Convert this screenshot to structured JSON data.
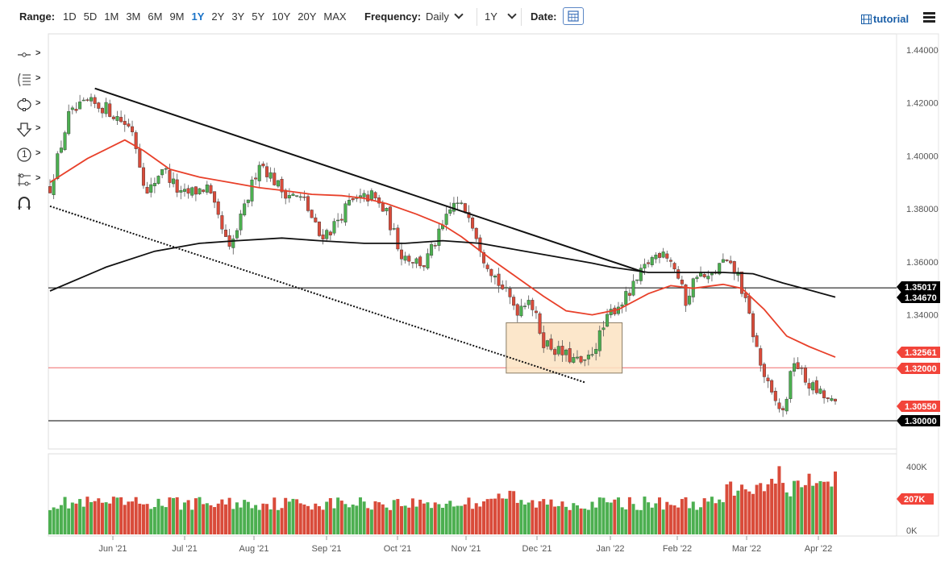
{
  "toolbar": {
    "range_label": "Range:",
    "ranges": [
      "1D",
      "5D",
      "1M",
      "3M",
      "6M",
      "9M",
      "1Y",
      "2Y",
      "3Y",
      "5Y",
      "10Y",
      "20Y",
      "MAX"
    ],
    "active_range": "1Y",
    "frequency_label": "Frequency:",
    "frequency_value": "Daily",
    "period_value": "1Y",
    "date_label": "Date:",
    "tutorial_label": "tutorial"
  },
  "sidebar": {
    "tools": [
      "crosshair-tool",
      "fibonacci-tool",
      "shapes-tool",
      "arrow-tool",
      "label-tool",
      "measure-tool",
      "magnet-tool"
    ],
    "label_text": "1"
  },
  "chart_data": {
    "type": "candlestick",
    "price_axis": {
      "ticks": [
        "1.44000",
        "1.42000",
        "1.40000",
        "1.38000",
        "1.36000",
        "1.34000"
      ],
      "range": [
        1.297,
        1.443
      ]
    },
    "x_axis_labels": [
      "Jun '21",
      "Jul '21",
      "Aug '21",
      "Sep '21",
      "Oct '21",
      "Nov '21",
      "Dec '21",
      "Jan '22",
      "Feb '22",
      "Mar '22",
      "Apr '22"
    ],
    "price_tags": [
      {
        "label": "1.35017",
        "bg": "#000000"
      },
      {
        "label": "1.34670",
        "bg": "#000000"
      },
      {
        "label": "1.32561",
        "bg": "#f2443a"
      },
      {
        "label": "1.32000",
        "bg": "#f2443a"
      },
      {
        "label": "1.30550",
        "bg": "#f2443a"
      },
      {
        "label": "1.30000",
        "bg": "#000000"
      }
    ],
    "horizontal_lines": [
      {
        "price": 1.35017,
        "color": "#000000"
      },
      {
        "price": 1.32,
        "color": "#f06a6a"
      },
      {
        "price": 1.3,
        "color": "#000000"
      }
    ],
    "trendlines": [
      {
        "name": "downtrend-resistance",
        "from": {
          "bar": 12,
          "price": 1.4255
        },
        "to": {
          "bar": 159,
          "price": 1.356
        },
        "style": "solid"
      },
      {
        "name": "channel-support",
        "from": {
          "bar": 0,
          "price": 1.381
        },
        "to": {
          "bar": 143,
          "price": 1.3145
        },
        "style": "dotted"
      }
    ],
    "consolidation_box": {
      "from_bar": 122,
      "to_bar": 153,
      "price_top": 1.337,
      "price_bottom": 1.318
    },
    "moving_averages": [
      {
        "name": "ma-50",
        "color": "#e8402a",
        "points": [
          [
            0,
            1.39
          ],
          [
            10,
            1.399
          ],
          [
            20,
            1.406
          ],
          [
            25,
            1.402
          ],
          [
            32,
            1.395
          ],
          [
            40,
            1.392
          ],
          [
            48,
            1.39
          ],
          [
            56,
            1.388
          ],
          [
            62,
            1.387
          ],
          [
            70,
            1.3855
          ],
          [
            78,
            1.385
          ],
          [
            84,
            1.384
          ],
          [
            90,
            1.382
          ],
          [
            98,
            1.378
          ],
          [
            105,
            1.374
          ],
          [
            110,
            1.3695
          ],
          [
            118,
            1.361
          ],
          [
            125,
            1.354
          ],
          [
            132,
            1.347
          ],
          [
            138,
            1.3415
          ],
          [
            145,
            1.34
          ],
          [
            152,
            1.342
          ],
          [
            160,
            1.348
          ],
          [
            166,
            1.351
          ],
          [
            172,
            1.35
          ],
          [
            180,
            1.3515
          ],
          [
            185,
            1.35
          ],
          [
            191,
            1.342
          ],
          [
            197,
            1.332
          ],
          [
            203,
            1.328
          ],
          [
            210,
            1.324
          ]
        ]
      },
      {
        "name": "ma-200",
        "color": "#111111",
        "points": [
          [
            0,
            1.349
          ],
          [
            15,
            1.358
          ],
          [
            28,
            1.364
          ],
          [
            40,
            1.367
          ],
          [
            50,
            1.368
          ],
          [
            62,
            1.369
          ],
          [
            72,
            1.368
          ],
          [
            84,
            1.367
          ],
          [
            95,
            1.367
          ],
          [
            105,
            1.368
          ],
          [
            115,
            1.367
          ],
          [
            125,
            1.3645
          ],
          [
            135,
            1.362
          ],
          [
            145,
            1.3595
          ],
          [
            150,
            1.358
          ],
          [
            160,
            1.356
          ],
          [
            170,
            1.356
          ],
          [
            180,
            1.356
          ],
          [
            188,
            1.3555
          ],
          [
            196,
            1.352
          ],
          [
            204,
            1.349
          ],
          [
            210,
            1.3467
          ]
        ]
      }
    ],
    "volume_axis": {
      "ticks": [
        "400K",
        "0K"
      ]
    },
    "volume_tag": {
      "label": "207K",
      "bg": "#f2443a"
    },
    "candles": {
      "up_color": "#4caf50",
      "down_color": "#d94b3a",
      "count": 211,
      "anchors": [
        [
          0,
          1.388
        ],
        [
          5,
          1.415
        ],
        [
          10,
          1.42
        ],
        [
          15,
          1.418
        ],
        [
          22,
          1.41
        ],
        [
          26,
          1.385
        ],
        [
          30,
          1.396
        ],
        [
          35,
          1.385
        ],
        [
          42,
          1.388
        ],
        [
          48,
          1.364
        ],
        [
          52,
          1.38
        ],
        [
          56,
          1.398
        ],
        [
          62,
          1.387
        ],
        [
          68,
          1.383
        ],
        [
          72,
          1.37
        ],
        [
          75,
          1.372
        ],
        [
          80,
          1.382
        ],
        [
          86,
          1.385
        ],
        [
          90,
          1.378
        ],
        [
          94,
          1.363
        ],
        [
          100,
          1.359
        ],
        [
          104,
          1.37
        ],
        [
          108,
          1.382
        ],
        [
          112,
          1.379
        ],
        [
          116,
          1.362
        ],
        [
          120,
          1.352
        ],
        [
          125,
          1.342
        ],
        [
          128,
          1.347
        ],
        [
          132,
          1.33
        ],
        [
          136,
          1.326
        ],
        [
          140,
          1.323
        ],
        [
          143,
          1.321
        ],
        [
          146,
          1.329
        ],
        [
          150,
          1.341
        ],
        [
          155,
          1.348
        ],
        [
          160,
          1.36
        ],
        [
          164,
          1.365
        ],
        [
          167,
          1.358
        ],
        [
          170,
          1.345
        ],
        [
          173,
          1.356
        ],
        [
          176,
          1.353
        ],
        [
          180,
          1.36
        ],
        [
          184,
          1.355
        ],
        [
          187,
          1.339
        ],
        [
          190,
          1.321
        ],
        [
          193,
          1.309
        ],
        [
          196,
          1.303
        ],
        [
          199,
          1.323
        ],
        [
          202,
          1.315
        ],
        [
          206,
          1.31
        ],
        [
          210,
          1.3055
        ]
      ]
    },
    "volume_range": [
      0,
      420000
    ]
  }
}
